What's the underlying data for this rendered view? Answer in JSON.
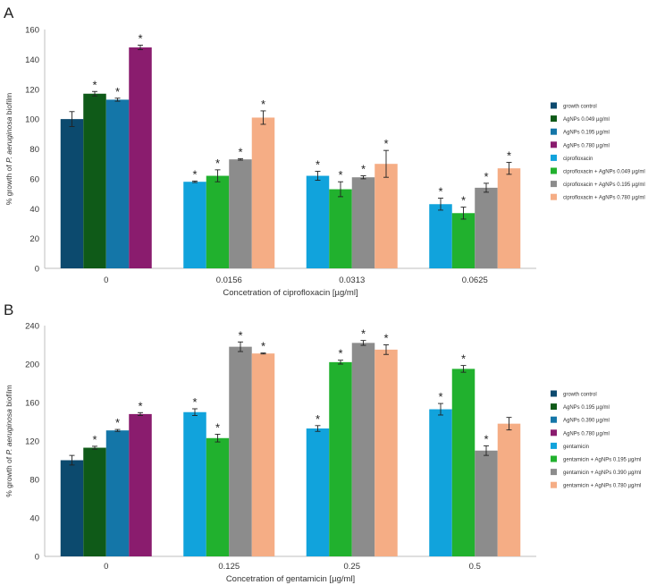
{
  "panels": [
    {
      "letter": "A",
      "colors": [
        "#0c4a6e",
        "#0f5a18",
        "#1476a8",
        "#8a1c6e",
        "#11a3dc",
        "#21b12e",
        "#8c8c8c",
        "#f5ad85"
      ],
      "legend": [
        "growth control",
        "AgNPs 0.049 µg/ml",
        "AgNPs 0.195 µg/ml",
        "AgNPs 0.780 µg/ml",
        "ciprofloxacin",
        "ciprofloxacin + AgNPs 0.049 µg/ml",
        "ciprofloxacin + AgNPs 0.195 µg/ml",
        "ciprofloxacin + AgNPs 0.780 µg/ml"
      ],
      "yticks": [
        "0",
        "20",
        "40",
        "60",
        "80",
        "100",
        "120",
        "140",
        "160"
      ]
    },
    {
      "letter": "B",
      "colors": [
        "#0c4a6e",
        "#0f5a18",
        "#1476a8",
        "#8a1c6e",
        "#11a3dc",
        "#21b12e",
        "#8c8c8c",
        "#f5ad85"
      ],
      "legend": [
        "growth control",
        "AgNPs 0.195 µg/ml",
        "AgNPs 0.390 µg/ml",
        "AgNPs 0.780 µg/ml",
        "gentamicin",
        "gentamicin + AgNPs 0.195 µg/ml",
        "gentamicin + AgNPs 0.390 µg/ml",
        "gentamicin + AgNPs 0.780 µg/ml"
      ],
      "yticks": [
        "0",
        "40",
        "80",
        "120",
        "160",
        "200",
        "240"
      ]
    }
  ],
  "chart_data": [
    {
      "type": "bar",
      "title": "",
      "ylabel": "% growth of P. aeruginosa biofilm",
      "xlabel": "Concetration of ciprofloxacin [µg/ml]",
      "ylim": [
        0,
        160
      ],
      "grid": false,
      "legend_position": "right",
      "categories": [
        "0",
        "0.0156",
        "0.0313",
        "0.0625"
      ],
      "groups": [
        {
          "category": "0",
          "bars": [
            {
              "series": "growth control",
              "value": 100,
              "error": 5,
              "star": false
            },
            {
              "series": "AgNPs 0.049 µg/ml",
              "value": 117,
              "error": 1.5,
              "star": true
            },
            {
              "series": "AgNPs 0.195 µg/ml",
              "value": 113,
              "error": 1,
              "star": true
            },
            {
              "series": "AgNPs 0.780 µg/ml",
              "value": 148,
              "error": 1.5,
              "star": true
            }
          ]
        },
        {
          "category": "0.0156",
          "bars": [
            {
              "series": "ciprofloxacin",
              "value": 58,
              "error": 0.5,
              "star": true
            },
            {
              "series": "ciprofloxacin + AgNPs 0.049 µg/ml",
              "value": 62,
              "error": 4,
              "star": true
            },
            {
              "series": "ciprofloxacin + AgNPs 0.195 µg/ml",
              "value": 73,
              "error": 0.5,
              "star": true
            },
            {
              "series": "ciprofloxacin + AgNPs 0.780 µg/ml",
              "value": 101,
              "error": 4.5,
              "star": true
            }
          ]
        },
        {
          "category": "0.0313",
          "bars": [
            {
              "series": "ciprofloxacin",
              "value": 62,
              "error": 3,
              "star": true
            },
            {
              "series": "ciprofloxacin + AgNPs 0.049 µg/ml",
              "value": 53,
              "error": 5,
              "star": true
            },
            {
              "series": "ciprofloxacin + AgNPs 0.195 µg/ml",
              "value": 61,
              "error": 1,
              "star": true
            },
            {
              "series": "ciprofloxacin + AgNPs 0.780 µg/ml",
              "value": 70,
              "error": 9,
              "star": true
            }
          ]
        },
        {
          "category": "0.0625",
          "bars": [
            {
              "series": "ciprofloxacin",
              "value": 43,
              "error": 4,
              "star": true
            },
            {
              "series": "ciprofloxacin + AgNPs 0.049 µg/ml",
              "value": 37,
              "error": 4,
              "star": true
            },
            {
              "series": "ciprofloxacin + AgNPs 0.195 µg/ml",
              "value": 54,
              "error": 3,
              "star": true
            },
            {
              "series": "ciprofloxacin + AgNPs 0.780 µg/ml",
              "value": 67,
              "error": 4,
              "star": true
            }
          ]
        }
      ]
    },
    {
      "type": "bar",
      "title": "",
      "ylabel": "% growth of P. aeruginosa biofilm",
      "xlabel": "Concetration of gentamicin [µg/ml]",
      "ylim": [
        0,
        240
      ],
      "grid": false,
      "legend_position": "right",
      "categories": [
        "0",
        "0.125",
        "0.25",
        "0.5"
      ],
      "groups": [
        {
          "category": "0",
          "bars": [
            {
              "series": "growth control",
              "value": 100,
              "error": 5,
              "star": false
            },
            {
              "series": "AgNPs 0.195 µg/ml",
              "value": 113,
              "error": 1.5,
              "star": true
            },
            {
              "series": "AgNPs 0.390 µg/ml",
              "value": 131,
              "error": 1,
              "star": true
            },
            {
              "series": "AgNPs 0.780 µg/ml",
              "value": 148,
              "error": 1.5,
              "star": true
            }
          ]
        },
        {
          "category": "0.125",
          "bars": [
            {
              "series": "gentamicin",
              "value": 150,
              "error": 3.5,
              "star": true
            },
            {
              "series": "gentamicin + AgNPs 0.195 µg/ml",
              "value": 123,
              "error": 4,
              "star": true
            },
            {
              "series": "gentamicin + AgNPs 0.390 µg/ml",
              "value": 218,
              "error": 5,
              "star": true
            },
            {
              "series": "gentamicin + AgNPs 0.780 µg/ml",
              "value": 211,
              "error": 0.5,
              "star": true
            }
          ]
        },
        {
          "category": "0.25",
          "bars": [
            {
              "series": "gentamicin",
              "value": 133,
              "error": 3,
              "star": true
            },
            {
              "series": "gentamicin + AgNPs 0.195 µg/ml",
              "value": 202,
              "error": 2,
              "star": true
            },
            {
              "series": "gentamicin + AgNPs 0.390 µg/ml",
              "value": 222,
              "error": 2.5,
              "star": true
            },
            {
              "series": "gentamicin + AgNPs 0.780 µg/ml",
              "value": 215,
              "error": 5,
              "star": true
            }
          ]
        },
        {
          "category": "0.5",
          "bars": [
            {
              "series": "gentamicin",
              "value": 153,
              "error": 6,
              "star": true
            },
            {
              "series": "gentamicin + AgNPs 0.195 µg/ml",
              "value": 195,
              "error": 3.5,
              "star": true
            },
            {
              "series": "gentamicin + AgNPs 0.390 µg/ml",
              "value": 110,
              "error": 5,
              "star": true
            },
            {
              "series": "gentamicin + AgNPs 0.780 µg/ml",
              "value": 138,
              "error": 6.5,
              "star": false
            }
          ]
        }
      ]
    }
  ]
}
